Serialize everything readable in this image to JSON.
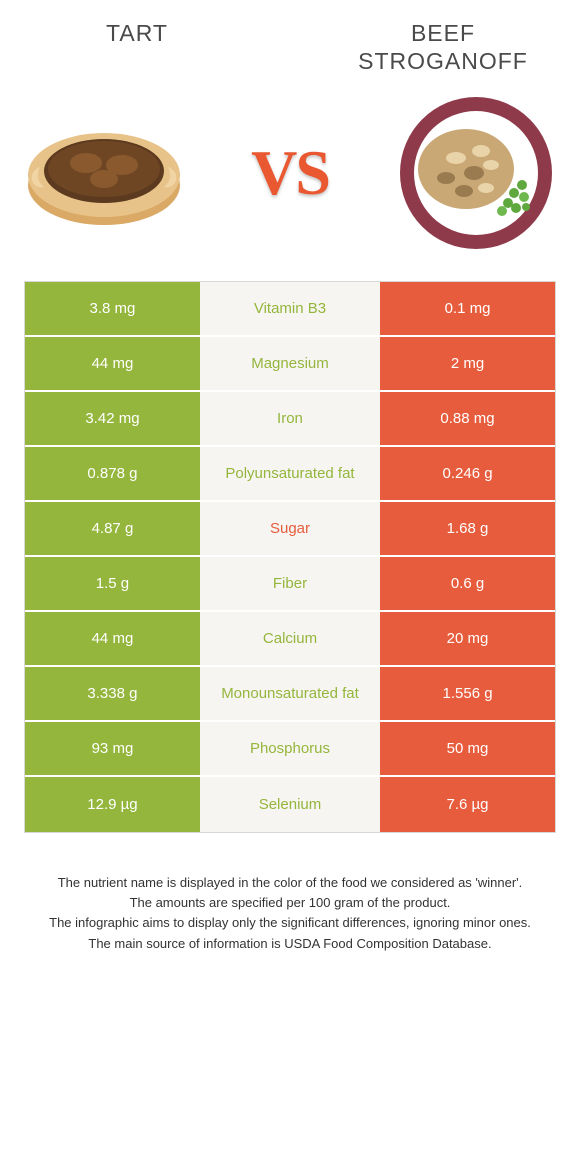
{
  "colors": {
    "left_food": "#94b63c",
    "right_food": "#e75c3c",
    "mid_bg": "#f7f5f2",
    "border": "#d8d8d8",
    "vs": "#e95830",
    "title": "#4a4a4a",
    "footer": "#333333"
  },
  "foods": {
    "left": {
      "name": "Tart"
    },
    "right": {
      "name": "Beef Stroganoff"
    }
  },
  "vs_label": "VS",
  "rows": [
    {
      "left": "3.8 mg",
      "label": "Vitamin B3",
      "right": "0.1 mg",
      "winner": "left"
    },
    {
      "left": "44 mg",
      "label": "Magnesium",
      "right": "2 mg",
      "winner": "left"
    },
    {
      "left": "3.42 mg",
      "label": "Iron",
      "right": "0.88 mg",
      "winner": "left"
    },
    {
      "left": "0.878 g",
      "label": "Polyunsaturated fat",
      "right": "0.246 g",
      "winner": "left"
    },
    {
      "left": "4.87 g",
      "label": "Sugar",
      "right": "1.68 g",
      "winner": "right"
    },
    {
      "left": "1.5 g",
      "label": "Fiber",
      "right": "0.6 g",
      "winner": "left"
    },
    {
      "left": "44 mg",
      "label": "Calcium",
      "right": "20 mg",
      "winner": "left"
    },
    {
      "left": "3.338 g",
      "label": "Monounsaturated fat",
      "right": "1.556 g",
      "winner": "left"
    },
    {
      "left": "93 mg",
      "label": "Phosphorus",
      "right": "50 mg",
      "winner": "left"
    },
    {
      "left": "12.9 µg",
      "label": "Selenium",
      "right": "7.6 µg",
      "winner": "left"
    }
  ],
  "footer": [
    "The nutrient name is displayed in the color of the food we considered as 'winner'.",
    "The amounts are specified per 100 gram of the product.",
    "The infographic aims to display only the significant differences, ignoring minor ones.",
    "The main source of information is USDA Food Composition Database."
  ]
}
